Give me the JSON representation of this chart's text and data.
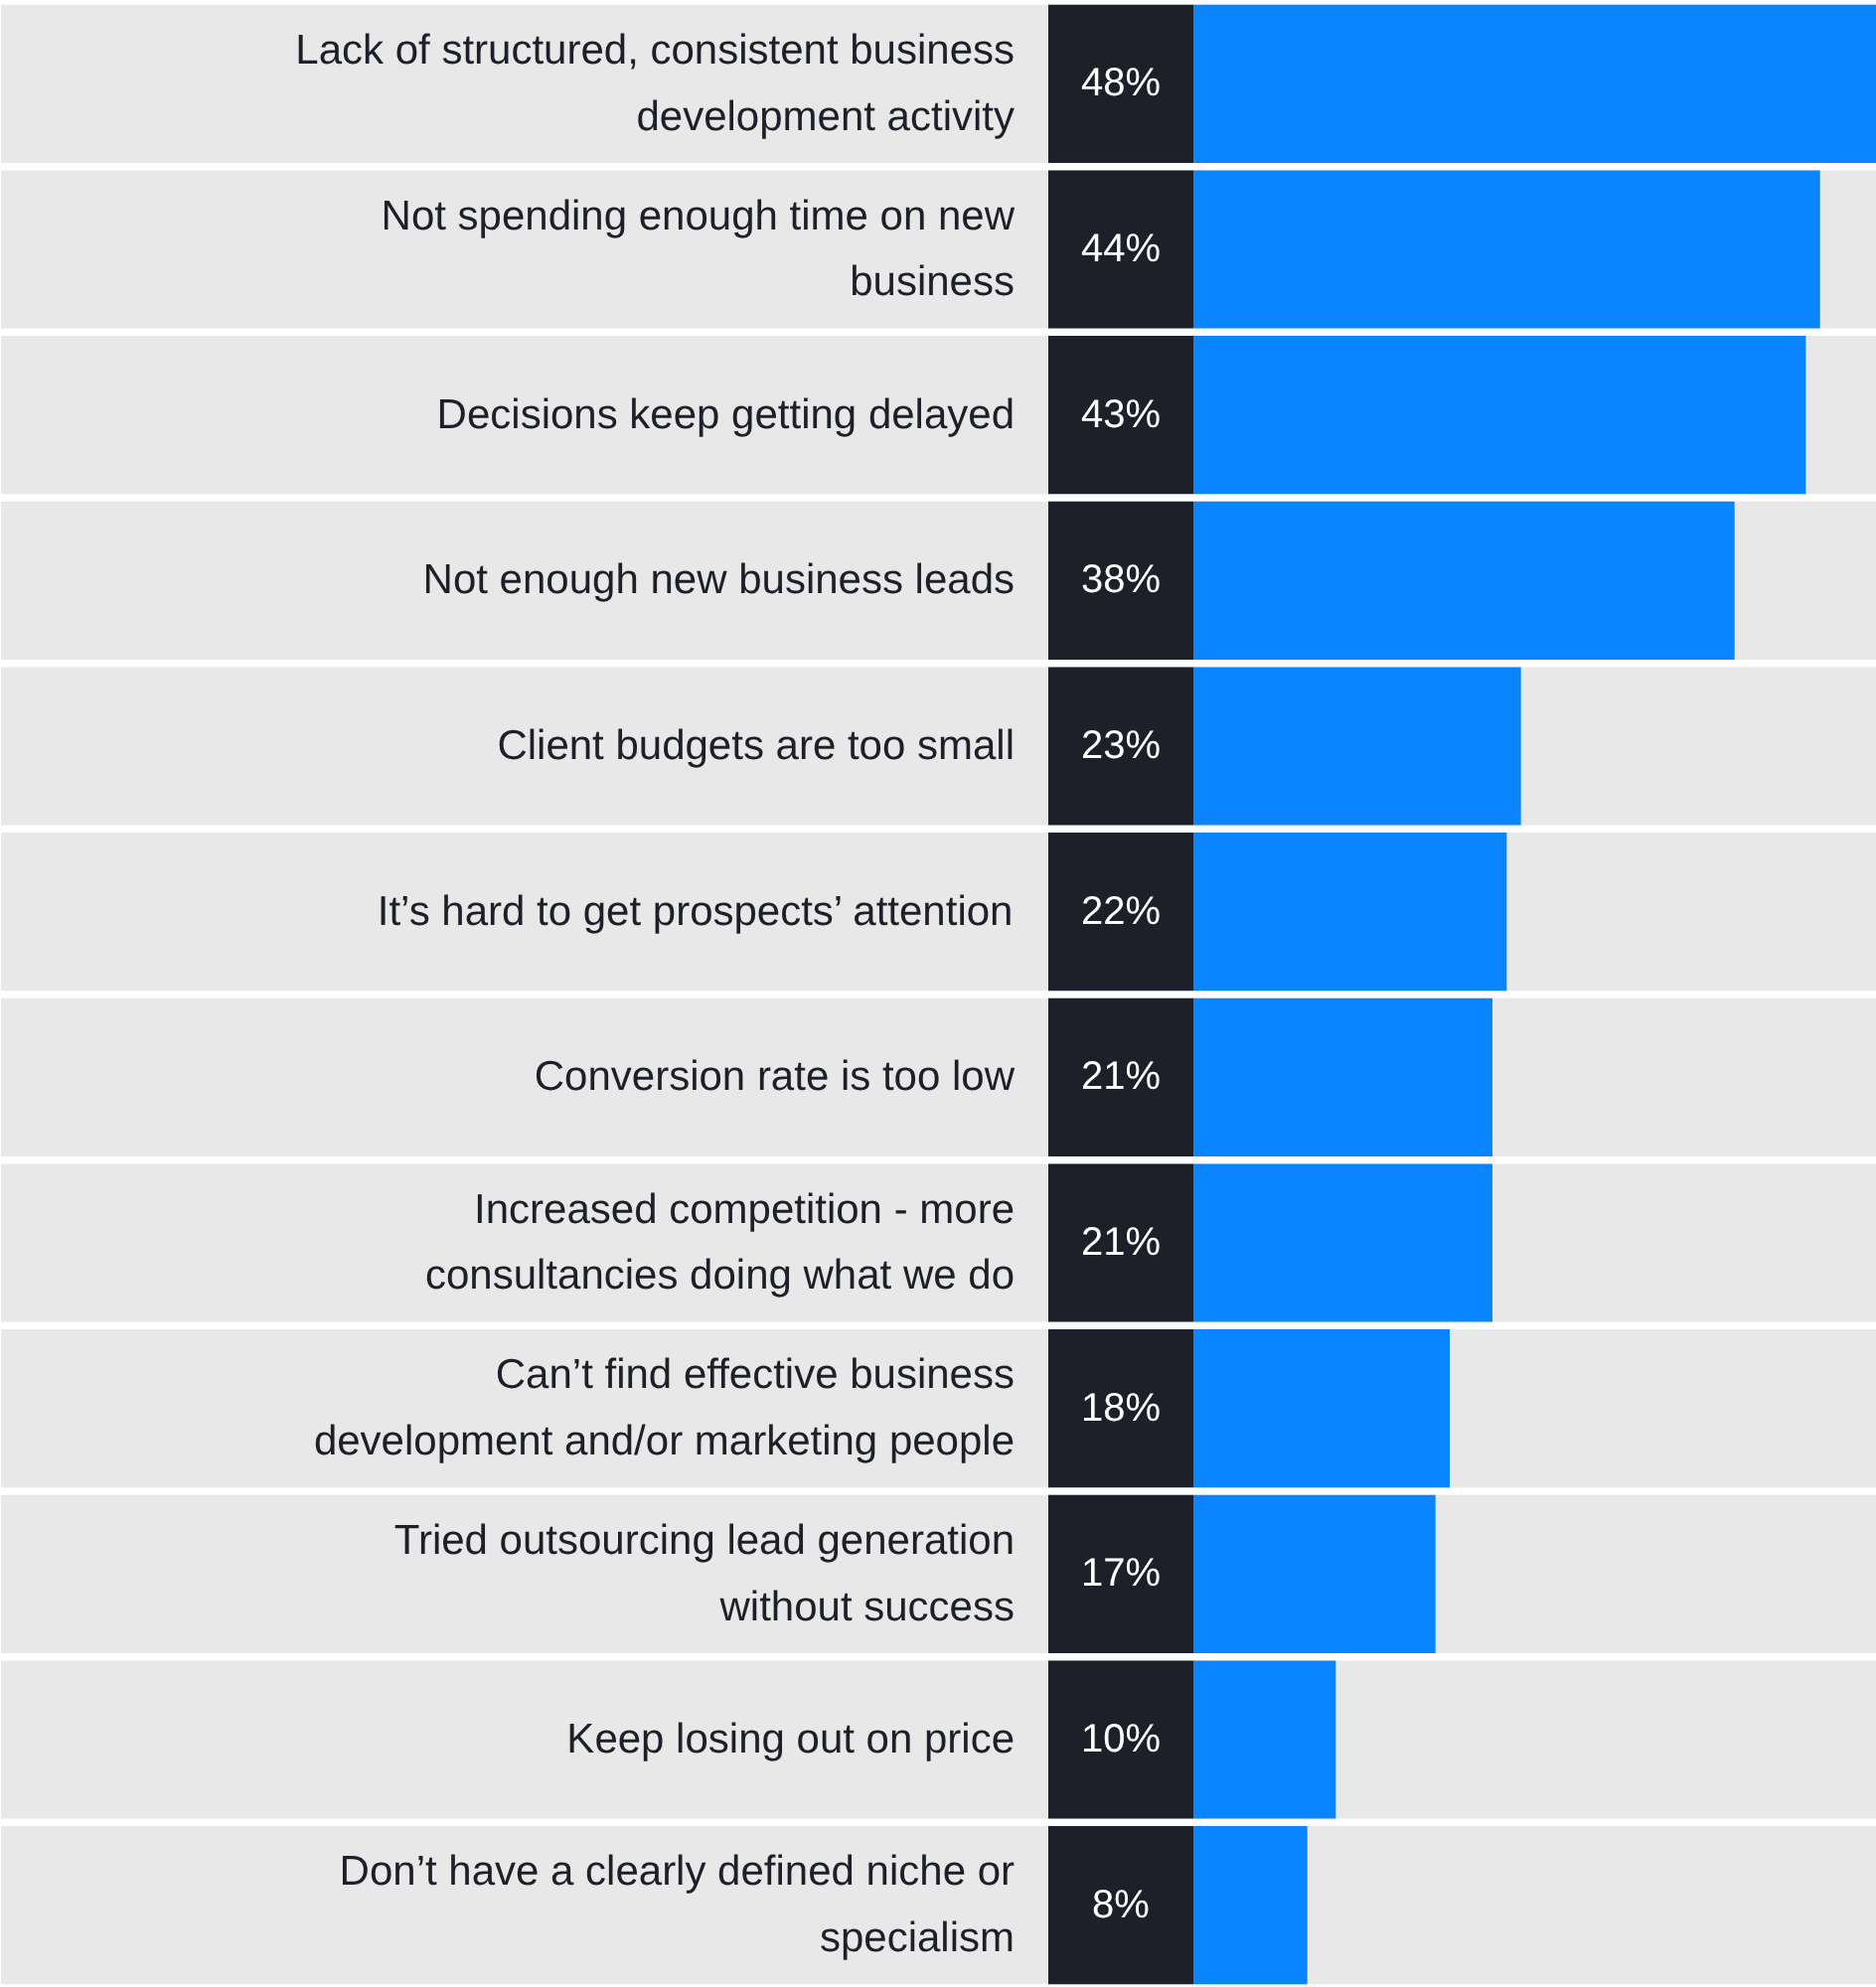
{
  "chart_data": {
    "type": "bar",
    "orientation": "horizontal",
    "categories": [
      "Lack of structured, consistent business development activity",
      "Not spending enough time on new business",
      "Decisions keep getting delayed",
      "Not enough new business leads",
      "Client budgets are too small",
      "It’s hard to get prospects’ attention",
      "Conversion rate is too low",
      "Increased competition - more consultancies doing what we do",
      "Can’t find effective business development and/or marketing people",
      "Tried outsourcing lead generation without success",
      "Keep losing out on price",
      "Don’t have a clearly defined niche or specialism"
    ],
    "values": [
      48,
      44,
      43,
      38,
      23,
      22,
      21,
      21,
      18,
      17,
      10,
      8
    ],
    "value_labels": [
      "48%",
      "44%",
      "43%",
      "38%",
      "23%",
      "22%",
      "21%",
      "21%",
      "18%",
      "17%",
      "10%",
      "8%"
    ],
    "color": "#0a84ff"
  }
}
